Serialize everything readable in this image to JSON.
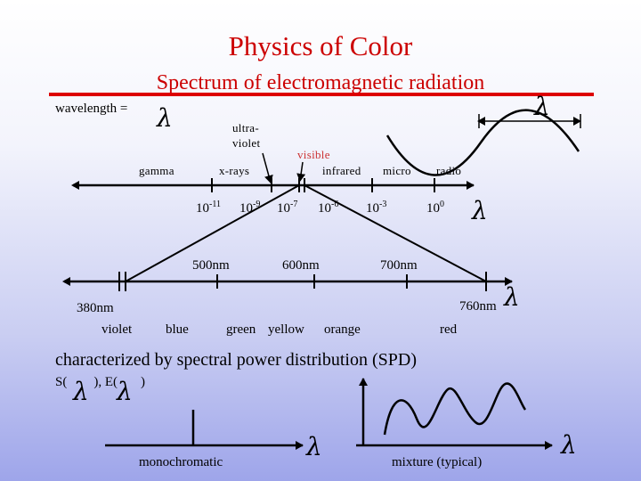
{
  "slide": {
    "title": "Physics of Color",
    "subtitle": "Spectrum of electromagnetic radiation",
    "wavelength_label": "wavelength =",
    "lambda": "λ"
  },
  "spectrum": {
    "bands": {
      "gamma": "gamma",
      "ultraviolet_line1": "ultra-",
      "ultraviolet_line2": "violet",
      "xrays": "x-rays",
      "visible": "visible",
      "infrared": "infrared",
      "micro": "micro",
      "radio": "radio"
    },
    "ticks": [
      {
        "base": "10",
        "exp": "-11"
      },
      {
        "base": "10",
        "exp": "-9"
      },
      {
        "base": "10",
        "exp": "-7"
      },
      {
        "base": "10",
        "exp": "-6"
      },
      {
        "base": "10",
        "exp": "-3"
      },
      {
        "base": "10",
        "exp": "0"
      }
    ]
  },
  "visible_scale": {
    "nm_labels": [
      "500nm",
      "600nm",
      "700nm",
      "380nm",
      "760nm"
    ],
    "colors": [
      "violet",
      "blue",
      "green",
      "yellow",
      "orange",
      "red"
    ]
  },
  "spd": {
    "caption": "characterized by spectral power distribution (SPD)",
    "s_prefix": "S(",
    "e_prefix": "), E(",
    "close": ")",
    "monochromatic": "monochromatic",
    "mixture": "mixture (typical)"
  },
  "colors": {
    "title": "#cc0000",
    "underline": "#dd0000"
  }
}
